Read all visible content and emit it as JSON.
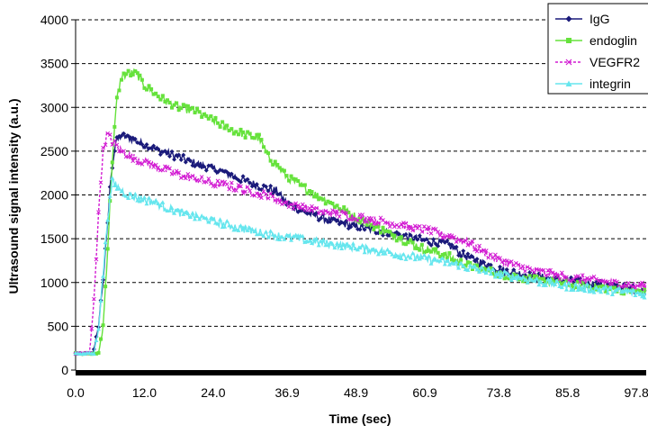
{
  "chart_data": {
    "type": "line",
    "title": "",
    "xlabel": "Time (sec)",
    "ylabel": "Ultrasound signal intensity (a.u.)",
    "xlim": [
      0,
      99.5
    ],
    "ylim": [
      0,
      4000
    ],
    "x_ticks": [
      "0.0",
      "12.0",
      "24.0",
      "36.9",
      "48.9",
      "60.9",
      "73.8",
      "85.8",
      "97.8"
    ],
    "x_tick_values": [
      0,
      12.0,
      24.0,
      36.9,
      48.9,
      60.9,
      73.8,
      85.8,
      97.8
    ],
    "y_ticks": [
      0,
      500,
      1000,
      1500,
      2000,
      2500,
      3000,
      3500,
      4000
    ],
    "grid": "horizontal dashed",
    "legend_position": "top-right",
    "series": [
      {
        "name": "IgG",
        "color": "#1a1a7a",
        "marker": "diamond",
        "line_style": "solid",
        "points": [
          [
            0,
            190
          ],
          [
            3.0,
            190
          ],
          [
            3.8,
            400
          ],
          [
            4.6,
            900
          ],
          [
            5.4,
            1500
          ],
          [
            6.2,
            2250
          ],
          [
            7.0,
            2600
          ],
          [
            8.0,
            2680
          ],
          [
            9.5,
            2650
          ],
          [
            12,
            2570
          ],
          [
            15,
            2500
          ],
          [
            18,
            2430
          ],
          [
            21,
            2360
          ],
          [
            24,
            2300
          ],
          [
            27,
            2230
          ],
          [
            30,
            2150
          ],
          [
            33,
            2080
          ],
          [
            35,
            2050
          ],
          [
            36.9,
            1900
          ],
          [
            40,
            1800
          ],
          [
            45,
            1700
          ],
          [
            48.9,
            1640
          ],
          [
            55,
            1560
          ],
          [
            60.9,
            1480
          ],
          [
            65,
            1430
          ],
          [
            68,
            1300
          ],
          [
            73.8,
            1150
          ],
          [
            80,
            1070
          ],
          [
            85.8,
            1020
          ],
          [
            92,
            970
          ],
          [
            97.8,
            920
          ],
          [
            99.5,
            900
          ]
        ]
      },
      {
        "name": "endoglin",
        "color": "#66e23c",
        "marker": "square",
        "line_style": "solid",
        "points": [
          [
            0,
            190
          ],
          [
            4.0,
            190
          ],
          [
            4.8,
            500
          ],
          [
            5.6,
            1400
          ],
          [
            6.4,
            2400
          ],
          [
            7.2,
            3100
          ],
          [
            8.0,
            3350
          ],
          [
            9.0,
            3380
          ],
          [
            10.5,
            3400
          ],
          [
            12,
            3250
          ],
          [
            15,
            3100
          ],
          [
            18,
            3000
          ],
          [
            21,
            2950
          ],
          [
            24,
            2850
          ],
          [
            27,
            2750
          ],
          [
            30,
            2680
          ],
          [
            32,
            2650
          ],
          [
            33.5,
            2450
          ],
          [
            36.9,
            2200
          ],
          [
            42,
            2000
          ],
          [
            48.9,
            1750
          ],
          [
            55,
            1550
          ],
          [
            60.9,
            1380
          ],
          [
            65,
            1300
          ],
          [
            68,
            1200
          ],
          [
            73.8,
            1100
          ],
          [
            80,
            1030
          ],
          [
            85.8,
            980
          ],
          [
            92,
            940
          ],
          [
            97.8,
            900
          ],
          [
            99.5,
            880
          ]
        ]
      },
      {
        "name": "VEGFR2",
        "color": "#d21bd2",
        "marker": "cross",
        "line_style": "dashed",
        "points": [
          [
            0,
            190
          ],
          [
            2.4,
            190
          ],
          [
            3.0,
            600
          ],
          [
            3.6,
            1300
          ],
          [
            4.2,
            2000
          ],
          [
            4.8,
            2500
          ],
          [
            5.5,
            2700
          ],
          [
            6.5,
            2600
          ],
          [
            8,
            2500
          ],
          [
            10,
            2430
          ],
          [
            12,
            2380
          ],
          [
            15,
            2300
          ],
          [
            18,
            2230
          ],
          [
            21,
            2180
          ],
          [
            24,
            2130
          ],
          [
            27,
            2100
          ],
          [
            30,
            2050
          ],
          [
            33,
            2000
          ],
          [
            36.9,
            1900
          ],
          [
            42,
            1820
          ],
          [
            48.9,
            1750
          ],
          [
            55,
            1680
          ],
          [
            60.9,
            1600
          ],
          [
            65,
            1530
          ],
          [
            68,
            1470
          ],
          [
            73.8,
            1250
          ],
          [
            80,
            1130
          ],
          [
            85.8,
            1060
          ],
          [
            92,
            1010
          ],
          [
            97.8,
            960
          ],
          [
            99.5,
            950
          ]
        ]
      },
      {
        "name": "integrin",
        "color": "#66e6ee",
        "marker": "triangle",
        "line_style": "solid",
        "points": [
          [
            0,
            190
          ],
          [
            3.2,
            190
          ],
          [
            4.0,
            500
          ],
          [
            4.8,
            1100
          ],
          [
            5.6,
            1750
          ],
          [
            6.4,
            2150
          ],
          [
            7.2,
            2100
          ],
          [
            9,
            2000
          ],
          [
            12,
            1950
          ],
          [
            15,
            1880
          ],
          [
            18,
            1800
          ],
          [
            21,
            1750
          ],
          [
            24,
            1700
          ],
          [
            27,
            1650
          ],
          [
            30,
            1600
          ],
          [
            33,
            1560
          ],
          [
            36.9,
            1520
          ],
          [
            42,
            1460
          ],
          [
            48.9,
            1400
          ],
          [
            55,
            1340
          ],
          [
            60.9,
            1270
          ],
          [
            65,
            1230
          ],
          [
            68,
            1180
          ],
          [
            73.8,
            1100
          ],
          [
            80,
            1020
          ],
          [
            85.8,
            960
          ],
          [
            92,
            920
          ],
          [
            97.8,
            880
          ],
          [
            99.5,
            870
          ]
        ]
      }
    ]
  }
}
